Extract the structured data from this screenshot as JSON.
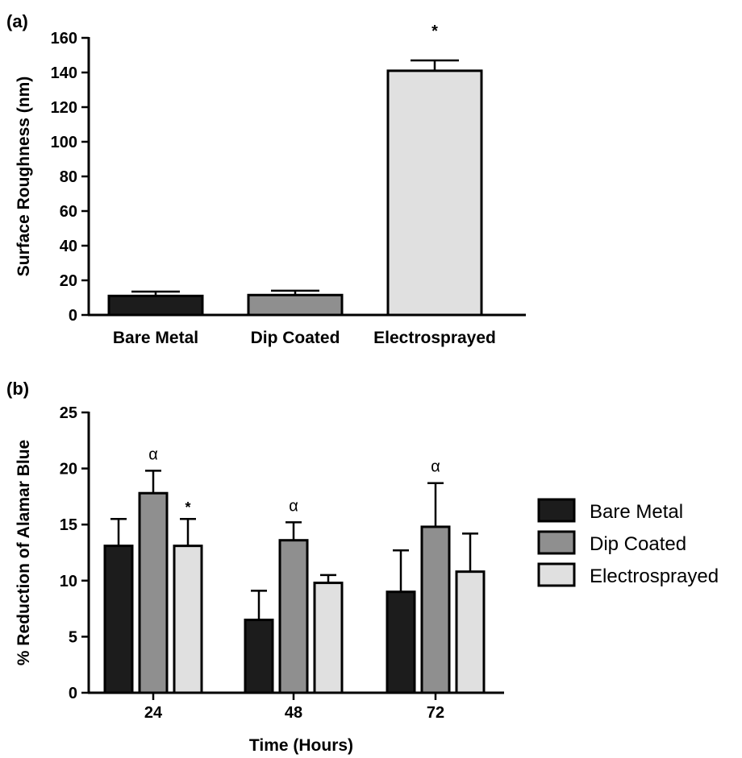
{
  "panel_a_label": "(a)",
  "panel_b_label": "(b)",
  "colors": {
    "bare_metal": "#1c1c1c",
    "dip_coated": "#8f8f8f",
    "electrosprayed": "#e0e0e0",
    "stroke": "#000000"
  },
  "chart_data": [
    {
      "type": "bar",
      "panel": "(a)",
      "categories": [
        "Bare Metal",
        "Dip Coated",
        "Electrosprayed"
      ],
      "values": [
        11,
        11.5,
        141
      ],
      "errors": [
        2.5,
        2.5,
        6
      ],
      "annotations": [
        "",
        "",
        "*"
      ],
      "title": "",
      "xlabel": "",
      "ylabel": "Surface Roughness (nm)",
      "ylim": [
        0,
        160
      ],
      "yticks": [
        "0",
        "20",
        "40",
        "60",
        "80",
        "100",
        "120",
        "140",
        "160"
      ],
      "grid": false
    },
    {
      "type": "bar",
      "panel": "(b)",
      "categories": [
        "24",
        "48",
        "72"
      ],
      "series": [
        {
          "name": "Bare Metal",
          "values": [
            13.1,
            6.5,
            9.0
          ],
          "errors": [
            2.4,
            2.6,
            3.7
          ],
          "annotations": [
            "",
            "",
            ""
          ]
        },
        {
          "name": "Dip Coated",
          "values": [
            17.8,
            13.6,
            14.8
          ],
          "errors": [
            2.0,
            1.6,
            3.9
          ],
          "annotations": [
            "α",
            "α",
            "α"
          ]
        },
        {
          "name": "Electrosprayed",
          "values": [
            13.1,
            9.8,
            10.8
          ],
          "errors": [
            2.4,
            0.7,
            3.4
          ],
          "annotations": [
            "*",
            "",
            ""
          ]
        }
      ],
      "title": "",
      "xlabel": "Time (Hours)",
      "ylabel": "% Reduction of Alamar Blue",
      "ylim": [
        0,
        25
      ],
      "yticks": [
        "0",
        "5",
        "10",
        "15",
        "20",
        "25"
      ],
      "legend": "right",
      "grid": false
    }
  ]
}
